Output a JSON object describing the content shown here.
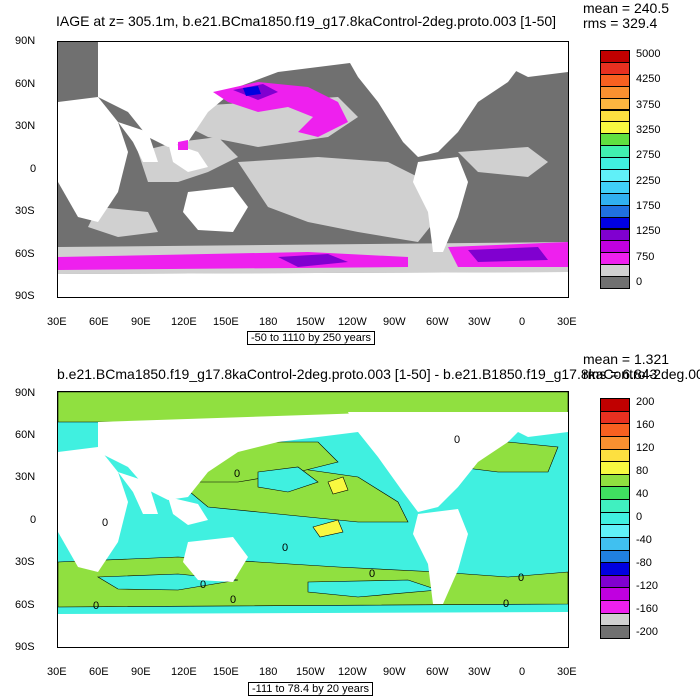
{
  "top": {
    "title": "IAGE at z= 305.1m, b.e21.BCma1850.f19_g17.8kaControl-2deg.proto.003 [1-50]",
    "mean": "mean = 240.5",
    "rms": "rms = 329.4",
    "range": "-50 to 1110 by 250 years",
    "colorbar": {
      "labels": [
        "5000",
        "4250",
        "3750",
        "3250",
        "2750",
        "2250",
        "1750",
        "1250",
        "750",
        "0"
      ],
      "colors": [
        "#c00000",
        "#e83020",
        "#f86020",
        "#fa9030",
        "#fdb540",
        "#fde040",
        "#f8f840",
        "#60e040",
        "#40f0b0",
        "#40f0e0",
        "#60f0f8",
        "#40d0f8",
        "#30b0f0",
        "#2070e0",
        "#0000e0",
        "#8000d0",
        "#c000e0",
        "#ee20ee",
        "#d0d0d0",
        "#707070"
      ]
    }
  },
  "bottom": {
    "title": "b.e21.BCma1850.f19_g17.8kaControl-2deg.proto.003 [1-50] - b.e21.B1850.f19_g17.8kaControl-2deg.003",
    "mean": "mean = 1.321",
    "rms": "rms = 6.843",
    "range": "-111 to 78.4 by 20 years",
    "colorbar": {
      "labels": [
        "200",
        "160",
        "120",
        "80",
        "40",
        "0",
        "-40",
        "-80",
        "-120",
        "-160",
        "-200"
      ],
      "colors": [
        "#c00000",
        "#e83020",
        "#f86020",
        "#fa9030",
        "#fde040",
        "#f8f840",
        "#90e040",
        "#40e060",
        "#40f0c0",
        "#40f0e0",
        "#60f0f8",
        "#40c0f0",
        "#2080e0",
        "#0000e0",
        "#8000d0",
        "#c000e0",
        "#ee20ee",
        "#d0d0d0",
        "#707070"
      ]
    }
  },
  "axes": {
    "lon_labels": [
      "30E",
      "60E",
      "90E",
      "120E",
      "150E",
      "180",
      "150W",
      "120W",
      "90W",
      "60W",
      "30W",
      "0",
      "30E"
    ],
    "lat_labels": [
      "90N",
      "60N",
      "30N",
      "0",
      "30S",
      "60S",
      "90S"
    ]
  },
  "contour_labels": [
    "0",
    "0",
    "0",
    "0",
    "0",
    "0",
    "0",
    "0",
    "0",
    "0"
  ]
}
